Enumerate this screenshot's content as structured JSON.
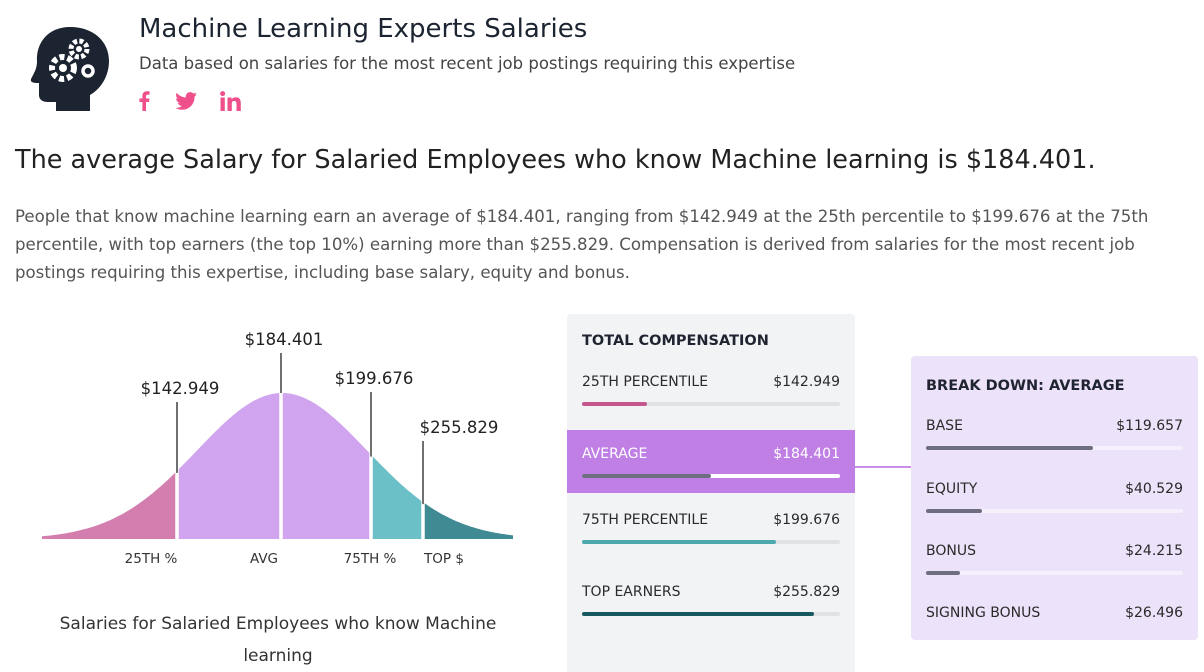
{
  "header": {
    "title": "Machine Learning Experts Salaries",
    "subtitle": "Data based on salaries for the most recent job postings requiring this expertise",
    "social_icons": [
      "facebook-icon",
      "twitter-icon",
      "linkedin-icon"
    ],
    "social_color": "#ef4f8a",
    "logo_icon": "head-gears-icon"
  },
  "headline": "The average Salary for Salaried Employees who know Machine learning is $184.401.",
  "body": "People that know machine learning earn an average of $184.401, ranging from $142.949 at the 25th percentile to $199.676 at the 75th percentile, with top earners (the top 10%) earning more than $255.829. Compensation is derived from salaries for the most recent job postings requiring this expertise, including base salary, equity and bonus.",
  "chart_data": [
    {
      "type": "area",
      "caption": "Salaries for Salaried Employees who know Machine learning",
      "markers": [
        {
          "key": "p25",
          "label": "25TH %",
          "value_label": "$142.949",
          "value": 142949,
          "color": "#d47eaf"
        },
        {
          "key": "avg",
          "label": "AVG",
          "value_label": "$184.401",
          "value": 184401,
          "color": "#d0a4ee"
        },
        {
          "key": "p75",
          "label": "75TH %",
          "value_label": "$199.676",
          "value": 199676,
          "color": "#6bbfc6"
        },
        {
          "key": "top",
          "label": "TOP $",
          "value_label": "$255.829",
          "value": 255829,
          "color": "#3f8a93"
        }
      ]
    },
    {
      "type": "bar",
      "title": "TOTAL COMPENSATION",
      "rows": [
        {
          "label": "25TH PERCENTILE",
          "value_label": "$142.949",
          "fraction": 0.25,
          "color": "#c6578e"
        },
        {
          "label": "AVERAGE",
          "value_label": "$184.401",
          "fraction": 0.5,
          "color": "#6e6e80"
        },
        {
          "label": "75TH PERCENTILE",
          "value_label": "$199.676",
          "fraction": 0.75,
          "color": "#4ca8ad"
        },
        {
          "label": "TOP EARNERS",
          "value_label": "$255.829",
          "fraction": 0.9,
          "color": "#17595f"
        }
      ]
    },
    {
      "type": "bar",
      "title": "BREAK DOWN: AVERAGE",
      "rows": [
        {
          "label": "BASE",
          "value_label": "$119.657",
          "value": 119657,
          "color": "#6e6e80"
        },
        {
          "label": "EQUITY",
          "value_label": "$40.529",
          "value": 40529,
          "color": "#6e6e80"
        },
        {
          "label": "BONUS",
          "value_label": "$24.215",
          "value": 24215,
          "color": "#6e6e80"
        },
        {
          "label": "SIGNING BONUS",
          "value_label": "$26.496",
          "value": 26496,
          "color": "#6e6e80"
        }
      ],
      "max": 184401
    }
  ]
}
